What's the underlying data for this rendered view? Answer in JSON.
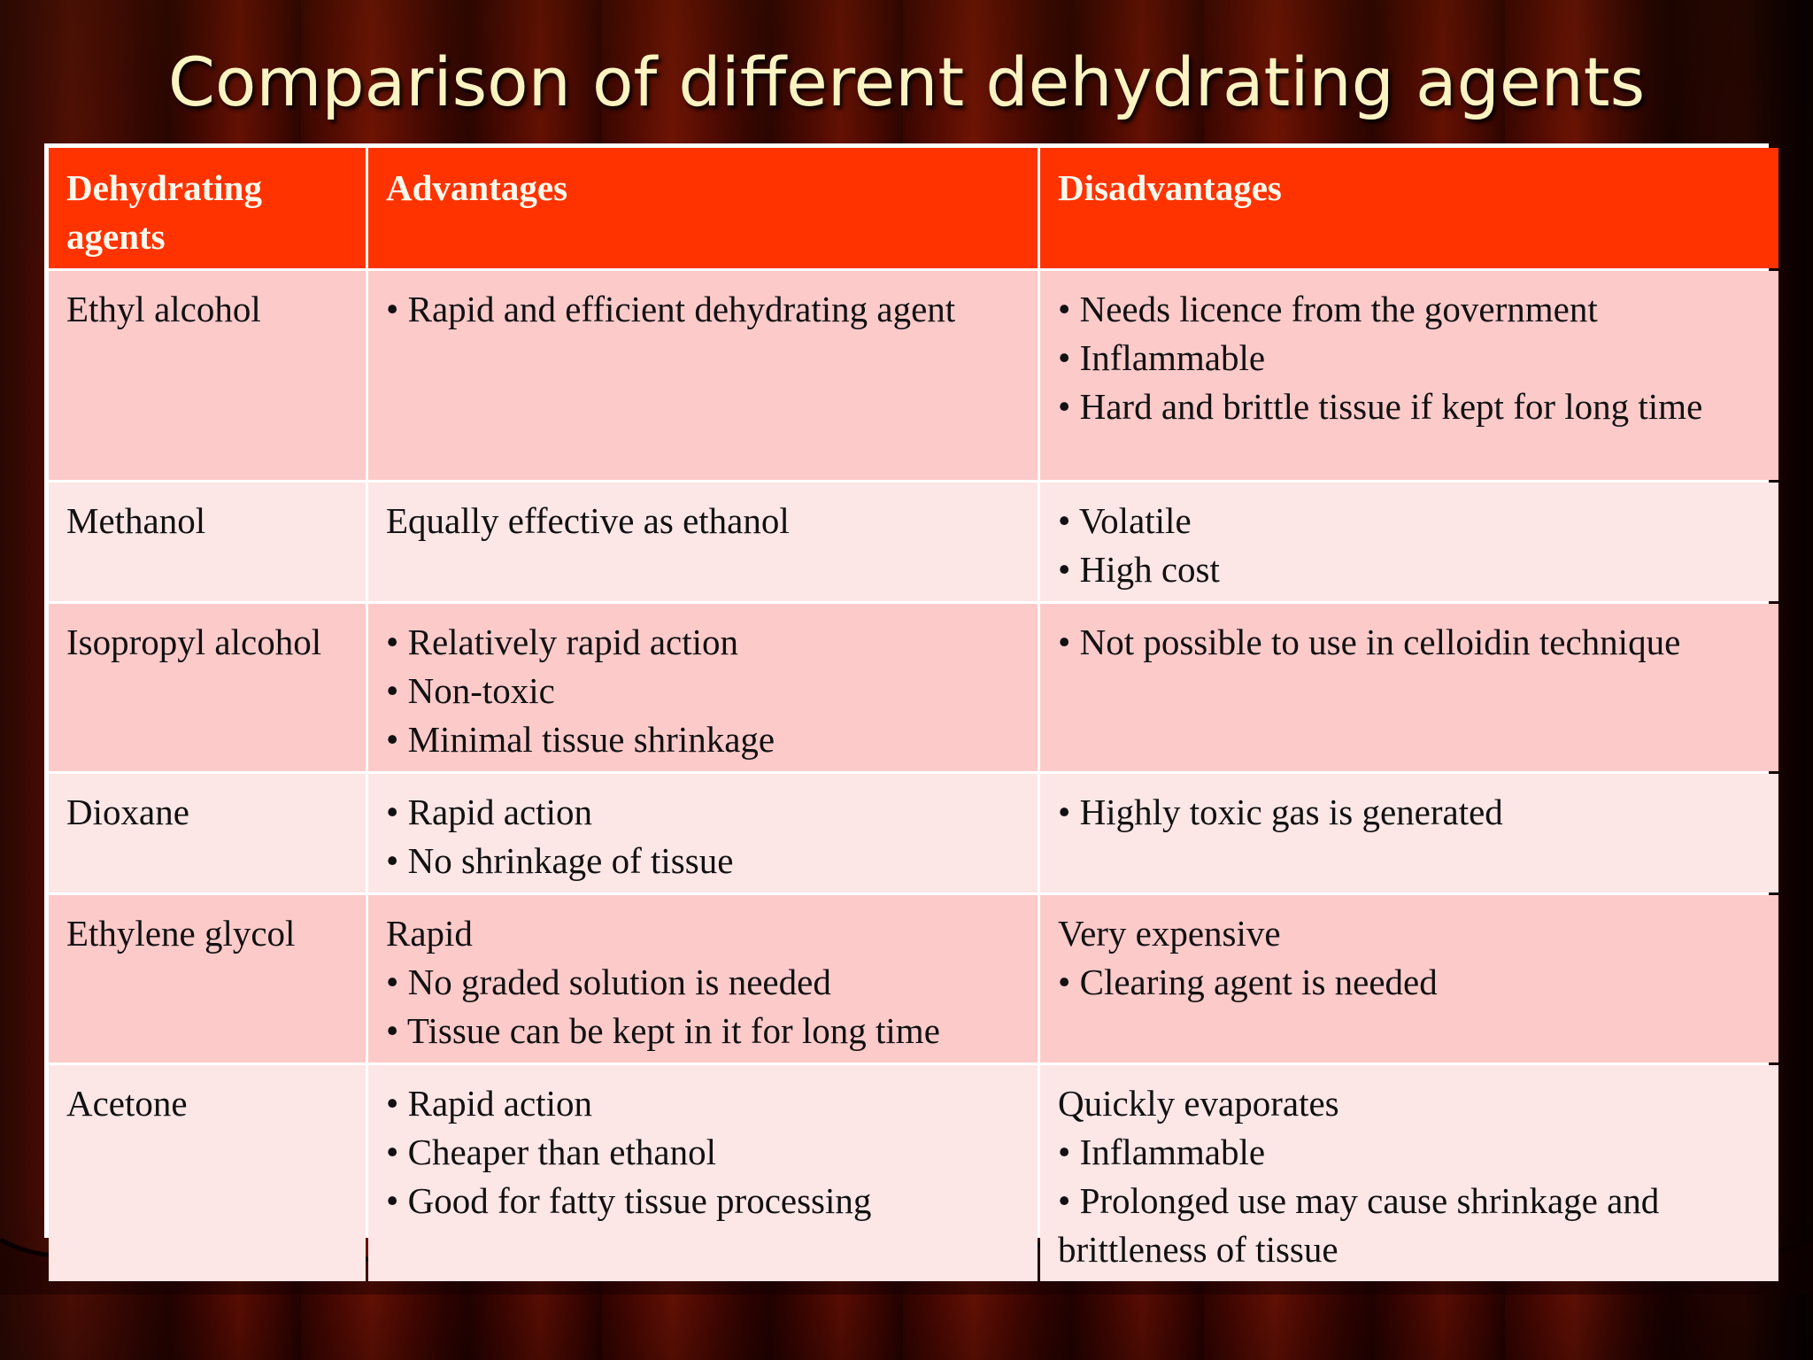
{
  "slide": {
    "title": "Comparison of different dehydrating agents"
  },
  "table": {
    "headers": [
      "Dehydrating agents",
      "Advantages",
      "Disadvantages"
    ],
    "rows": [
      {
        "agent": "Ethyl alcohol",
        "advantages": [
          "• Rapid and efficient dehydrating agent"
        ],
        "disadvantages": [
          "• Needs licence from the government",
          "• Inflammable",
          "• Hard and brittle tissue if kept for long time"
        ]
      },
      {
        "agent": "Methanol",
        "advantages": [
          "Equally effective as ethanol"
        ],
        "disadvantages": [
          "• Volatile",
          "• High cost"
        ]
      },
      {
        "agent": "Isopropyl alcohol",
        "advantages": [
          "• Relatively rapid action",
          "• Non-toxic",
          "• Minimal tissue shrinkage"
        ],
        "disadvantages": [
          "• Not possible to use in celloidin technique"
        ]
      },
      {
        "agent": "Dioxane",
        "advantages": [
          "• Rapid action",
          "• No shrinkage of tissue"
        ],
        "disadvantages": [
          "• Highly toxic gas is generated"
        ]
      },
      {
        "agent": "Ethylene glycol",
        "advantages": [
          "Rapid",
          "• No graded solution is needed",
          "• Tissue can be kept in it for long time"
        ],
        "disadvantages": [
          "Very expensive",
          "• Clearing agent is needed"
        ]
      },
      {
        "agent": "Acetone",
        "advantages": [
          "• Rapid action",
          "• Cheaper than ethanol",
          "• Good for fatty tissue processing"
        ],
        "disadvantages": [
          "Quickly evaporates",
          "• Inflammable",
          "• Prolonged use may cause shrinkage and brittleness of tissue"
        ]
      }
    ]
  },
  "colors": {
    "header_bg": "#ff3300",
    "row_odd_bg": "#fdcaca",
    "row_even_bg": "#fde6e6",
    "title_color": "#fbf4c2",
    "curtain": "#5c0a02"
  }
}
